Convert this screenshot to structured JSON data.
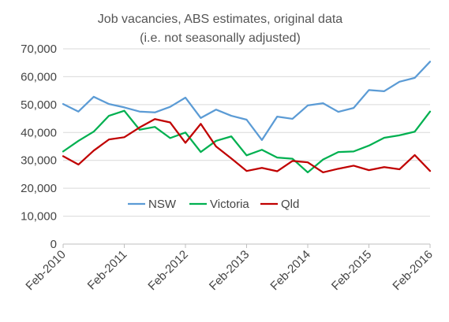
{
  "chart_data": {
    "type": "line",
    "title": "Job vacancies, ABS estimates, original data",
    "subtitle": "(i.e. not seasonally adjusted)",
    "xlabel": "",
    "ylabel": "",
    "ylim": [
      0,
      70000
    ],
    "y_ticks": [
      "0",
      "10,000",
      "20,000",
      "30,000",
      "40,000",
      "50,000",
      "60,000",
      "70,000"
    ],
    "y_tick_values": [
      0,
      10000,
      20000,
      30000,
      40000,
      50000,
      60000,
      70000
    ],
    "x_tick_labels": [
      "Feb-2010",
      "Feb-2011",
      "Feb-2012",
      "Feb-2013",
      "Feb-2014",
      "Feb-2015",
      "Feb-2016"
    ],
    "x_tick_indices": [
      0,
      4,
      8,
      12,
      16,
      20,
      24
    ],
    "grid": true,
    "legend_position": "bottom-center",
    "series": [
      {
        "name": "NSW",
        "color": "#5b9bd5",
        "values": [
          50200,
          47500,
          52800,
          50200,
          49000,
          47500,
          47200,
          49200,
          52500,
          45200,
          48200,
          46000,
          44600,
          37300,
          45700,
          44900,
          49700,
          50500,
          47400,
          48800,
          55200,
          54800,
          58200,
          59600,
          65400
        ]
      },
      {
        "name": "Victoria",
        "color": "#00b050",
        "values": [
          33200,
          37000,
          40300,
          46000,
          47800,
          41000,
          42000,
          38000,
          40000,
          33000,
          37000,
          38600,
          31800,
          33800,
          31000,
          30600,
          25700,
          30300,
          33000,
          33200,
          35300,
          38100,
          39000,
          40300,
          47500
        ]
      },
      {
        "name": "Qld",
        "color": "#c00000",
        "values": [
          31500,
          28500,
          33500,
          37500,
          38300,
          41800,
          44800,
          43600,
          36300,
          43100,
          35000,
          30700,
          26200,
          27300,
          26100,
          29800,
          29300,
          25700,
          27000,
          28100,
          26500,
          27600,
          26800,
          31900,
          26200
        ]
      }
    ]
  }
}
